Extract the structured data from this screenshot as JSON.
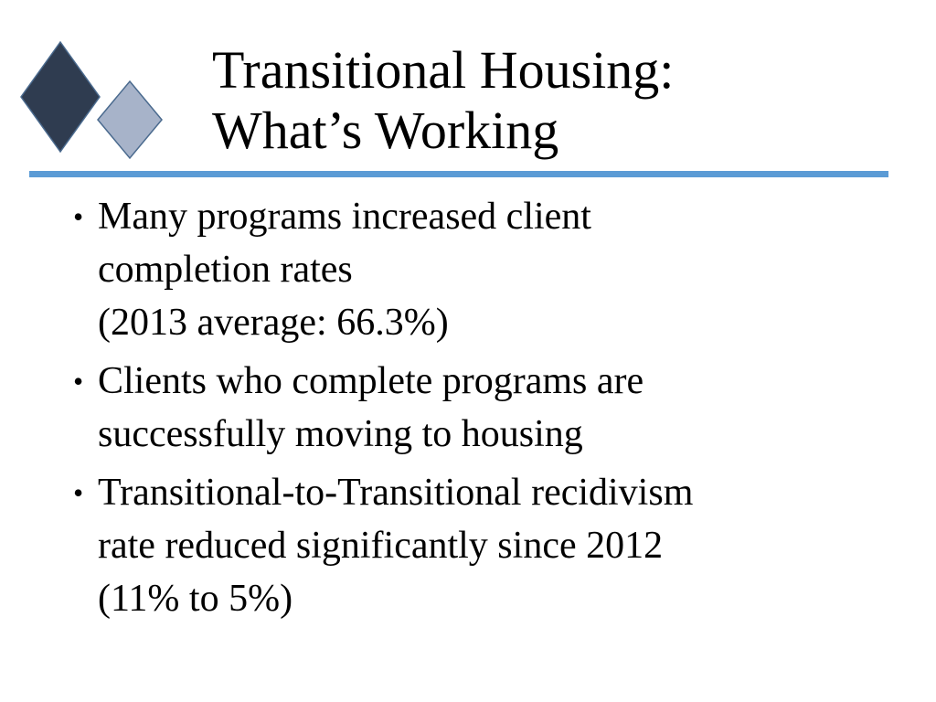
{
  "slide": {
    "title": "Transitional Housing:\nWhat’s Working",
    "bullets": [
      {
        "lines": [
          "Many programs increased client",
          "completion rates",
          "(2013 average: 66.3%)"
        ]
      },
      {
        "lines": [
          "Clients who complete programs are",
          "successfully moving to housing"
        ]
      },
      {
        "lines": [
          "Transitional-to-Transitional recidivism",
          "rate reduced significantly since 2012",
          "(11% to 5%)"
        ]
      }
    ],
    "bullet_glyph": "•"
  },
  "colors": {
    "dark_diamond": "#2f3c50",
    "light_diamond": "#a7b3c9",
    "rule": "#5b9bd5",
    "text": "#000000"
  },
  "icons": {
    "decoration": [
      "dark-diamond-icon",
      "light-diamond-icon"
    ]
  }
}
